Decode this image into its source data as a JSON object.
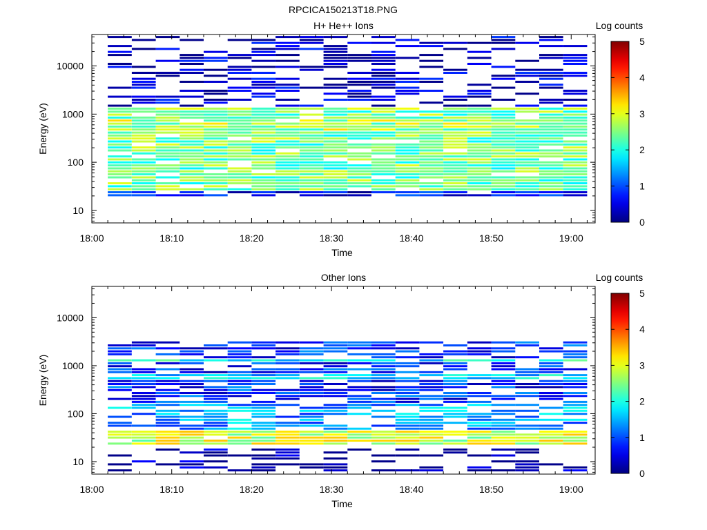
{
  "figure_title": "RPCICA150213T18.PNG",
  "chart_data": [
    {
      "type": "heatmap",
      "title": "H+ He++ Ions",
      "xlabel": "Time",
      "ylabel": "Energy (eV)",
      "colorbar_label": "Log counts",
      "xlim": [
        "18:00",
        "19:03"
      ],
      "x_ticks": [
        "18:00",
        "18:10",
        "18:20",
        "18:30",
        "18:40",
        "18:50",
        "19:00"
      ],
      "ylim": [
        5.5,
        45000
      ],
      "y_scale": "log",
      "y_ticks": [
        "10",
        "100",
        "1000",
        "10000"
      ],
      "clim": [
        0,
        5
      ],
      "colorbar_ticks": [
        "0",
        "1",
        "2",
        "3",
        "4",
        "5"
      ],
      "colormap": "jet",
      "time_bins_start": [
        "18:02",
        "18:05",
        "18:08",
        "18:11",
        "18:14",
        "18:17",
        "18:20",
        "18:23",
        "18:26",
        "18:29",
        "18:32",
        "18:35",
        "18:38",
        "18:41",
        "18:44",
        "18:47",
        "18:50",
        "18:53",
        "18:56",
        "18:59"
      ],
      "time_bin_minutes": 3,
      "bands": [
        {
          "emin": 25,
          "emax": 1400,
          "level": 2.4
        },
        {
          "emin": 450,
          "emax": 750,
          "level": 2.7
        },
        {
          "emin": 1150,
          "emax": 1450,
          "level": 2.5
        },
        {
          "emin": 18,
          "emax": 45,
          "level": 0.6
        },
        {
          "emin": 45,
          "emax": 40000,
          "level": 0.3
        }
      ],
      "peak_level": 3.9
    },
    {
      "type": "heatmap",
      "title": "Other Ions",
      "xlabel": "Time",
      "ylabel": "Energy (eV)",
      "colorbar_label": "Log counts",
      "xlim": [
        "18:00",
        "19:03"
      ],
      "x_ticks": [
        "18:00",
        "18:10",
        "18:20",
        "18:30",
        "18:40",
        "18:50",
        "19:00"
      ],
      "ylim": [
        5.5,
        45000
      ],
      "y_scale": "log",
      "y_ticks": [
        "10",
        "100",
        "1000",
        "10000"
      ],
      "clim": [
        0,
        5
      ],
      "colorbar_ticks": [
        "0",
        "1",
        "2",
        "3",
        "4",
        "5"
      ],
      "colormap": "jet",
      "time_bins_start": [
        "18:02",
        "18:05",
        "18:08",
        "18:11",
        "18:14",
        "18:17",
        "18:20",
        "18:23",
        "18:26",
        "18:29",
        "18:32",
        "18:35",
        "18:38",
        "18:41",
        "18:44",
        "18:47",
        "18:50",
        "18:53",
        "18:56",
        "18:59"
      ],
      "time_bin_minutes": 3,
      "bands": [
        {
          "emin": 22,
          "emax": 45,
          "level": 2.9
        },
        {
          "emin": 45,
          "emax": 150,
          "level": 1.4
        },
        {
          "emin": 150,
          "emax": 3000,
          "level": 0.8
        },
        {
          "emin": 500,
          "emax": 700,
          "level": 1.7
        },
        {
          "emin": 1200,
          "emax": 1400,
          "level": 1.9
        },
        {
          "emin": 6,
          "emax": 20,
          "level": 0.1
        }
      ],
      "peak_level": 3.4
    }
  ]
}
